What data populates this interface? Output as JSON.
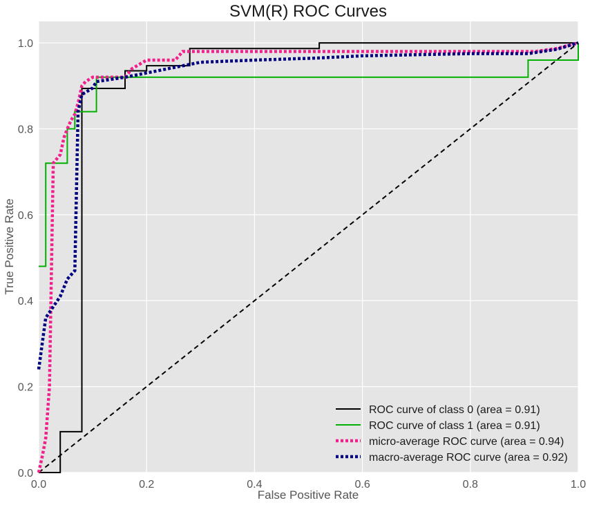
{
  "chart_data": {
    "type": "line",
    "title": "SVM(R) ROC Curves",
    "xlabel": "False Positive Rate",
    "ylabel": "True Positive Rate",
    "xlim": [
      0.0,
      1.0
    ],
    "ylim": [
      0.0,
      1.05
    ],
    "xticks": [
      0.0,
      0.2,
      0.4,
      0.6,
      0.8,
      1.0
    ],
    "xtick_labels": [
      "0.0",
      "0.2",
      "0.4",
      "0.6",
      "0.8",
      "1.0"
    ],
    "yticks": [
      0.0,
      0.2,
      0.4,
      0.6,
      0.8,
      1.0
    ],
    "ytick_labels": [
      "0.0",
      "0.2",
      "0.4",
      "0.6",
      "0.8",
      "1.0"
    ],
    "grid": true,
    "legend_position": "lower-right",
    "background_color": "#e5e5e5",
    "series": [
      {
        "name": "ROC curve of class 0 (area = 0.91)",
        "color": "#000000",
        "style": "solid",
        "x": [
          0.0,
          0.04,
          0.04,
          0.08,
          0.08,
          0.16,
          0.16,
          0.2,
          0.2,
          0.28,
          0.28,
          0.52,
          0.52,
          1.0
        ],
        "y": [
          0.0,
          0.0,
          0.095,
          0.095,
          0.894,
          0.894,
          0.935,
          0.935,
          0.947,
          0.947,
          0.987,
          0.987,
          1.0,
          1.0
        ]
      },
      {
        "name": "ROC curve of class 1 (area = 0.91)",
        "color": "#00b000",
        "style": "solid",
        "x": [
          0.0,
          0.0,
          0.013,
          0.013,
          0.053,
          0.053,
          0.067,
          0.067,
          0.107,
          0.107,
          0.907,
          0.907,
          1.0,
          1.0
        ],
        "y": [
          0.48,
          0.48,
          0.48,
          0.72,
          0.72,
          0.8,
          0.8,
          0.84,
          0.84,
          0.92,
          0.92,
          0.96,
          0.96,
          1.0
        ]
      },
      {
        "name": "micro-average ROC curve (area = 0.94)",
        "color": "#f0208c",
        "style": "dotted",
        "x": [
          0.0,
          0.007,
          0.013,
          0.02,
          0.027,
          0.04,
          0.047,
          0.053,
          0.06,
          0.067,
          0.073,
          0.08,
          0.087,
          0.1,
          0.107,
          0.14,
          0.16,
          0.173,
          0.2,
          0.253,
          0.267,
          0.4,
          0.6,
          0.8,
          0.92,
          0.96,
          1.0
        ],
        "y": [
          0.0,
          0.04,
          0.08,
          0.2,
          0.72,
          0.74,
          0.78,
          0.8,
          0.82,
          0.834,
          0.86,
          0.9,
          0.91,
          0.92,
          0.92,
          0.92,
          0.92,
          0.94,
          0.96,
          0.96,
          0.98,
          0.98,
          0.98,
          0.98,
          0.98,
          0.987,
          1.0
        ]
      },
      {
        "name": "macro-average ROC curve (area = 0.92)",
        "color": "#000080",
        "style": "dotted",
        "x": [
          0.0,
          0.013,
          0.04,
          0.053,
          0.067,
          0.073,
          0.08,
          0.087,
          0.1,
          0.107,
          0.16,
          0.2,
          0.28,
          0.3,
          0.4,
          0.52,
          0.6,
          0.8,
          0.907,
          0.96,
          1.0
        ],
        "y": [
          0.24,
          0.36,
          0.41,
          0.45,
          0.47,
          0.84,
          0.88,
          0.885,
          0.895,
          0.91,
          0.92,
          0.93,
          0.95,
          0.955,
          0.96,
          0.965,
          0.97,
          0.975,
          0.975,
          0.985,
          1.0
        ]
      }
    ],
    "reference_line": {
      "color": "#000000",
      "style": "dashed",
      "x": [
        0.0,
        1.0
      ],
      "y": [
        0.0,
        1.0
      ]
    },
    "legend": [
      {
        "label": "ROC curve of class 0 (area = 0.91)",
        "color": "#000000",
        "style": "solid"
      },
      {
        "label": "ROC curve of class 1 (area = 0.91)",
        "color": "#00b000",
        "style": "solid"
      },
      {
        "label": "micro-average ROC curve (area = 0.94)",
        "color": "#f0208c",
        "style": "dotted"
      },
      {
        "label": "macro-average ROC curve (area = 0.92)",
        "color": "#000080",
        "style": "dotted"
      }
    ]
  }
}
